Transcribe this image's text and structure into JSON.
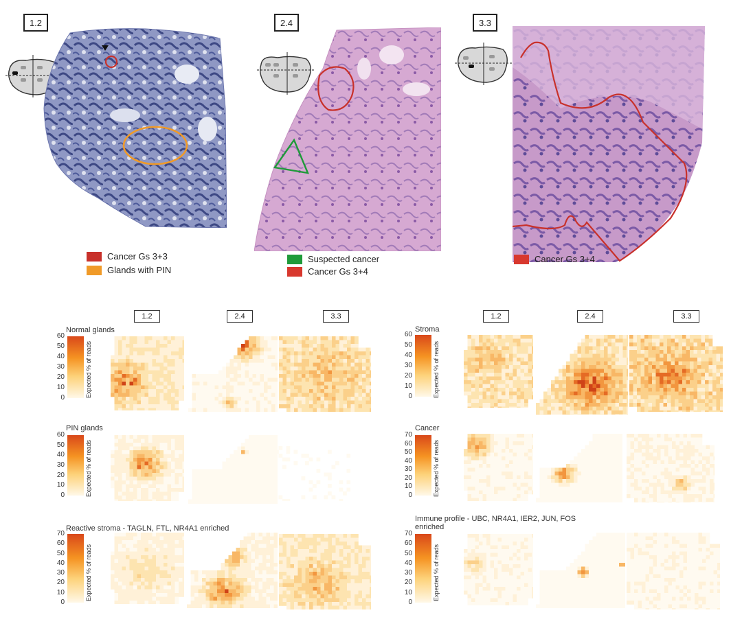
{
  "sections": [
    "1.2",
    "2.4",
    "3.3"
  ],
  "top_panels": [
    {
      "section": "1.2",
      "legend": [
        {
          "label": "Cancer Gs 3+3",
          "color": "#c8312b"
        },
        {
          "label": "Glands with PIN",
          "color": "#f09a28"
        }
      ]
    },
    {
      "section": "2.4",
      "legend": [
        {
          "label": "Suspected cancer",
          "color": "#1f9a3a"
        },
        {
          "label": "Cancer Gs 3+4",
          "color": "#d8382e"
        }
      ]
    },
    {
      "section": "3.3",
      "legend": [
        {
          "label": "Cancer Gs 3+4",
          "color": "#d8382e"
        }
      ]
    }
  ],
  "colorbar_title": "Expected % of reads",
  "heatmaps": [
    {
      "id": "normal",
      "label": "Normal glands",
      "ticks": [
        "60",
        "50",
        "40",
        "30",
        "20",
        "10",
        "0"
      ]
    },
    {
      "id": "pin",
      "label": "PIN glands",
      "ticks": [
        "60",
        "50",
        "40",
        "30",
        "20",
        "10",
        "0"
      ]
    },
    {
      "id": "reactive",
      "label": "Reactive stroma - TAGLN, FTL, NR4A1 enriched",
      "ticks": [
        "70",
        "60",
        "50",
        "40",
        "30",
        "20",
        "10",
        "0"
      ]
    },
    {
      "id": "stroma",
      "label": "Stroma",
      "ticks": [
        "60",
        "50",
        "40",
        "30",
        "20",
        "10",
        "0"
      ]
    },
    {
      "id": "cancer",
      "label": "Cancer",
      "ticks": [
        "70",
        "60",
        "50",
        "40",
        "30",
        "20",
        "10",
        "0"
      ]
    },
    {
      "id": "immune",
      "label": "Immune profile - UBC, NR4A1, IER2, JUN, FOS enriched",
      "ticks": [
        "70",
        "60",
        "50",
        "40",
        "30",
        "20",
        "10",
        "0"
      ]
    }
  ],
  "colors": {
    "he_blue": "#4d5a9a",
    "he_pink": "#c98fc4",
    "annot_red": "#c8312b",
    "annot_orange": "#f09a28",
    "annot_green": "#1f9a3a"
  }
}
